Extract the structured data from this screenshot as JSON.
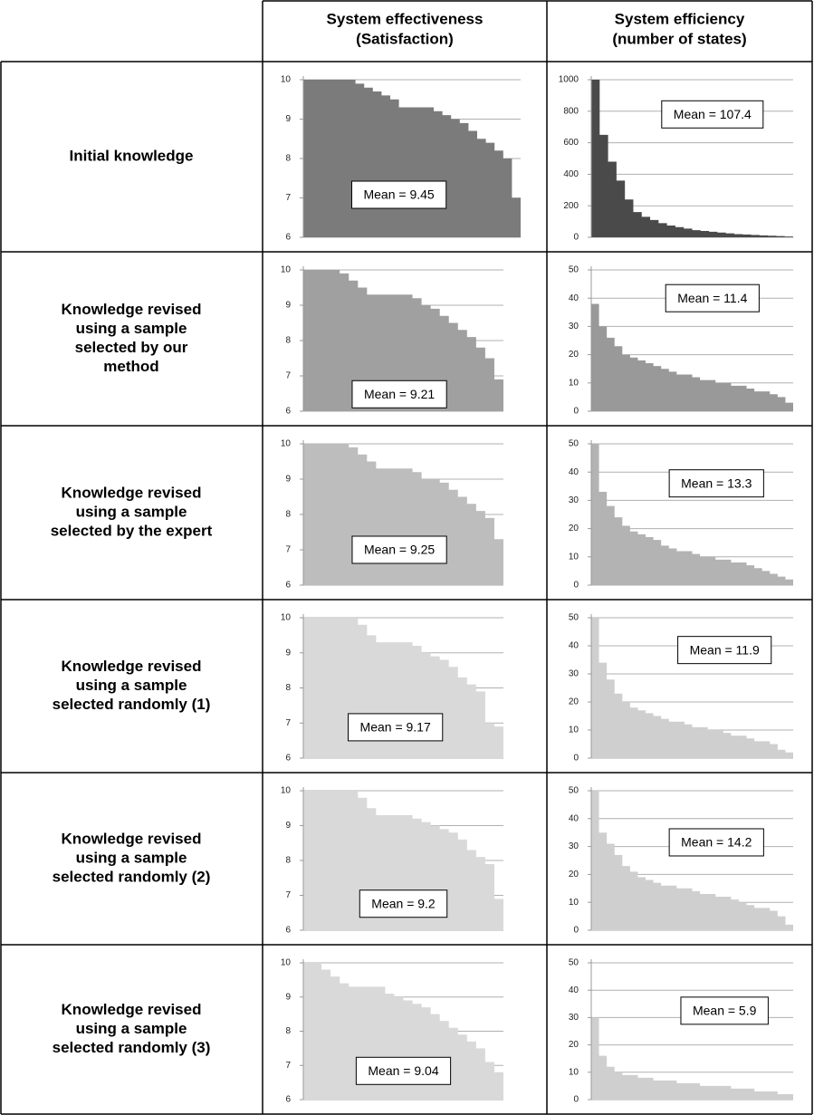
{
  "table": {
    "headers": [
      [
        "System effectiveness",
        "(Satisfaction)"
      ],
      [
        "System efficiency",
        "(number of states)"
      ]
    ],
    "rows": [
      [
        "Initial knowledge"
      ],
      [
        "Knowledge revised",
        "using a sample",
        "selected by our",
        "method"
      ],
      [
        "Knowledge revised",
        "using a sample",
        "selected by the expert"
      ],
      [
        "Knowledge revised",
        "using a sample",
        "selected randomly (1)"
      ],
      [
        "Knowledge revised",
        "using a sample",
        "selected randomly (2)"
      ],
      [
        "Knowledge revised",
        "using a sample",
        "selected randomly (3)"
      ]
    ]
  },
  "chart_data": [
    {
      "type": "area",
      "annotation": "Mean = 9.45",
      "color": "#7b7b7b",
      "grid": true,
      "ylim": [
        6,
        10
      ],
      "yticks": [
        6,
        7,
        8,
        9,
        10
      ],
      "values": [
        10,
        10,
        10,
        10,
        10,
        10,
        9.9,
        9.8,
        9.7,
        9.6,
        9.5,
        9.3,
        9.3,
        9.3,
        9.3,
        9.2,
        9.1,
        9.0,
        8.9,
        8.7,
        8.5,
        8.4,
        8.2,
        8.0,
        7.0
      ]
    },
    {
      "type": "area",
      "annotation": "Mean = 107.4",
      "color": "#4a4a4a",
      "grid": true,
      "ylim": [
        0,
        1000
      ],
      "yticks": [
        0,
        200,
        400,
        600,
        800,
        1000
      ],
      "values": [
        1000,
        650,
        480,
        360,
        240,
        160,
        130,
        110,
        90,
        75,
        65,
        55,
        45,
        40,
        35,
        30,
        25,
        20,
        18,
        15,
        12,
        10,
        8,
        5
      ]
    },
    {
      "type": "area",
      "annotation": "Mean = 9.21",
      "color": "#a0a0a0",
      "grid": true,
      "ylim": [
        6,
        10
      ],
      "yticks": [
        6,
        7,
        8,
        9,
        10
      ],
      "values": [
        10,
        10,
        10,
        10,
        9.9,
        9.7,
        9.5,
        9.3,
        9.3,
        9.3,
        9.3,
        9.3,
        9.2,
        9.0,
        8.9,
        8.7,
        8.5,
        8.3,
        8.1,
        7.8,
        7.5,
        6.9
      ]
    },
    {
      "type": "area",
      "annotation": "Mean = 11.4",
      "color": "#999999",
      "grid": true,
      "ylim": [
        0,
        50
      ],
      "yticks": [
        0,
        10,
        20,
        30,
        40,
        50
      ],
      "values": [
        38,
        30,
        26,
        23,
        20,
        19,
        18,
        17,
        16,
        15,
        14,
        13,
        13,
        12,
        11,
        11,
        10,
        10,
        9,
        9,
        8,
        7,
        7,
        6,
        5,
        3
      ]
    },
    {
      "type": "area",
      "annotation": "Mean = 9.25",
      "color": "#bdbdbd",
      "grid": true,
      "ylim": [
        6,
        10
      ],
      "yticks": [
        6,
        7,
        8,
        9,
        10
      ],
      "values": [
        10,
        10,
        10,
        10,
        10,
        9.9,
        9.7,
        9.5,
        9.3,
        9.3,
        9.3,
        9.3,
        9.2,
        9.0,
        9.0,
        8.9,
        8.7,
        8.5,
        8.3,
        8.1,
        7.9,
        7.3
      ]
    },
    {
      "type": "area",
      "annotation": "Mean = 13.3",
      "color": "#b3b3b3",
      "grid": true,
      "ylim": [
        0,
        50
      ],
      "yticks": [
        0,
        10,
        20,
        30,
        40,
        50
      ],
      "values": [
        50,
        33,
        28,
        24,
        21,
        19,
        18,
        17,
        16,
        14,
        13,
        12,
        12,
        11,
        10,
        10,
        9,
        9,
        8,
        8,
        7,
        6,
        5,
        4,
        3,
        2
      ]
    },
    {
      "type": "area",
      "annotation": "Mean = 9.17",
      "color": "#d9d9d9",
      "grid": true,
      "ylim": [
        6,
        10
      ],
      "yticks": [
        6,
        7,
        8,
        9,
        10
      ],
      "values": [
        10,
        10,
        10,
        10,
        10,
        10,
        9.8,
        9.5,
        9.3,
        9.3,
        9.3,
        9.3,
        9.2,
        9.0,
        8.9,
        8.8,
        8.6,
        8.3,
        8.1,
        7.9,
        7.0,
        6.9
      ]
    },
    {
      "type": "area",
      "annotation": "Mean = 11.9",
      "color": "#cfcfcf",
      "grid": true,
      "ylim": [
        0,
        50
      ],
      "yticks": [
        0,
        10,
        20,
        30,
        40,
        50
      ],
      "values": [
        50,
        34,
        28,
        23,
        20,
        18,
        17,
        16,
        15,
        14,
        13,
        13,
        12,
        11,
        11,
        10,
        10,
        9,
        8,
        8,
        7,
        6,
        6,
        5,
        3,
        2
      ]
    },
    {
      "type": "area",
      "annotation": "Mean = 9.2",
      "color": "#d9d9d9",
      "grid": true,
      "ylim": [
        6,
        10
      ],
      "yticks": [
        6,
        7,
        8,
        9,
        10
      ],
      "values": [
        10,
        10,
        10,
        10,
        10,
        10,
        9.8,
        9.5,
        9.3,
        9.3,
        9.3,
        9.3,
        9.2,
        9.1,
        9.0,
        8.9,
        8.8,
        8.6,
        8.3,
        8.1,
        7.9,
        6.9
      ]
    },
    {
      "type": "area",
      "annotation": "Mean = 14.2",
      "color": "#cfcfcf",
      "grid": true,
      "ylim": [
        0,
        50
      ],
      "yticks": [
        0,
        10,
        20,
        30,
        40,
        50
      ],
      "values": [
        50,
        35,
        31,
        27,
        23,
        21,
        19,
        18,
        17,
        16,
        16,
        15,
        15,
        14,
        13,
        13,
        12,
        12,
        11,
        10,
        9,
        8,
        8,
        7,
        5,
        2
      ]
    },
    {
      "type": "area",
      "annotation": "Mean = 9.04",
      "color": "#d9d9d9",
      "grid": true,
      "ylim": [
        6,
        10
      ],
      "yticks": [
        6,
        7,
        8,
        9,
        10
      ],
      "values": [
        10,
        10,
        9.8,
        9.6,
        9.4,
        9.3,
        9.3,
        9.3,
        9.3,
        9.1,
        9.0,
        8.9,
        8.8,
        8.7,
        8.5,
        8.3,
        8.1,
        7.9,
        7.7,
        7.5,
        7.1,
        6.8
      ]
    },
    {
      "type": "area",
      "annotation": "Mean = 5.9",
      "color": "#cfcfcf",
      "grid": true,
      "ylim": [
        0,
        50
      ],
      "yticks": [
        0,
        10,
        20,
        30,
        40,
        50
      ],
      "values": [
        30,
        16,
        12,
        10,
        9,
        9,
        8,
        8,
        7,
        7,
        7,
        6,
        6,
        6,
        5,
        5,
        5,
        5,
        4,
        4,
        4,
        3,
        3,
        3,
        2,
        2
      ]
    }
  ]
}
